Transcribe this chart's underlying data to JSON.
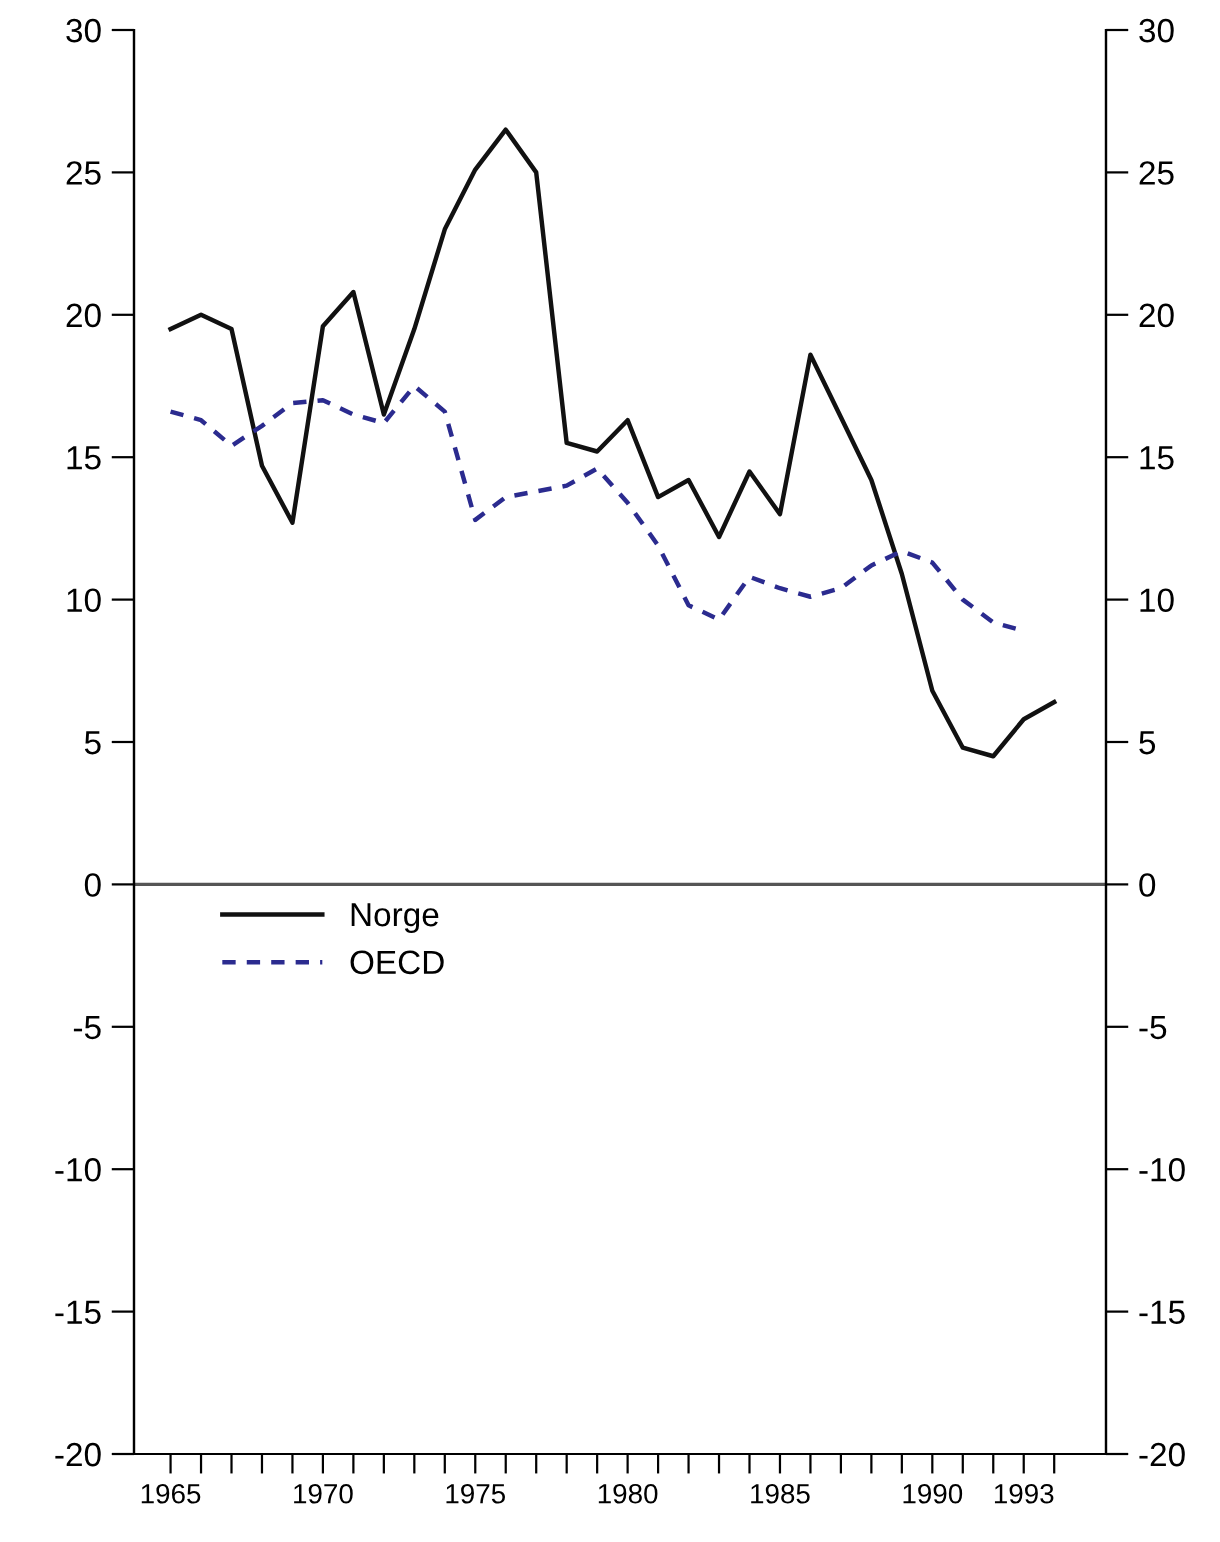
{
  "chart_data": {
    "type": "line",
    "x": [
      1965,
      1966,
      1967,
      1968,
      1969,
      1970,
      1971,
      1972,
      1973,
      1974,
      1975,
      1976,
      1977,
      1978,
      1979,
      1980,
      1981,
      1982,
      1983,
      1984,
      1985,
      1986,
      1987,
      1988,
      1989,
      1990,
      1991,
      1992,
      1993,
      1994
    ],
    "series": [
      {
        "name": "Norge",
        "color": "#111111",
        "line_style": "solid",
        "values": [
          19.5,
          20.0,
          19.5,
          14.7,
          12.7,
          19.6,
          20.8,
          16.5,
          19.5,
          23.0,
          25.1,
          26.5,
          25.0,
          15.5,
          15.2,
          16.3,
          13.6,
          14.2,
          12.2,
          14.5,
          13.0,
          18.6,
          16.4,
          14.2,
          10.9,
          6.8,
          4.8,
          4.5,
          5.8,
          6.4
        ]
      },
      {
        "name": "OECD",
        "color": "#2b2b8f",
        "line_style": "dashed",
        "values": [
          16.6,
          16.3,
          15.4,
          16.1,
          16.9,
          17.0,
          16.5,
          16.2,
          17.5,
          16.6,
          12.8,
          13.6,
          13.8,
          14.0,
          14.6,
          13.4,
          11.9,
          9.8,
          9.3,
          10.8,
          10.4,
          10.1,
          10.4,
          11.2,
          11.7,
          11.3,
          10.0,
          9.2,
          8.9,
          null
        ]
      }
    ],
    "xlim": [
      1963.8,
      1995.7
    ],
    "xticks": [
      1965,
      {
        "value": 1966,
        "label": null
      },
      {
        "value": 1967,
        "label": null
      },
      {
        "value": 1968,
        "label": null
      },
      {
        "value": 1969,
        "label": null
      },
      1970,
      {
        "value": 1971,
        "label": null
      },
      {
        "value": 1972,
        "label": null
      },
      {
        "value": 1973,
        "label": null
      },
      {
        "value": 1974,
        "label": null
      },
      1975,
      {
        "value": 1976,
        "label": null
      },
      {
        "value": 1977,
        "label": null
      },
      {
        "value": 1978,
        "label": null
      },
      {
        "value": 1979,
        "label": null
      },
      1980,
      {
        "value": 1981,
        "label": null
      },
      {
        "value": 1982,
        "label": null
      },
      {
        "value": 1983,
        "label": null
      },
      {
        "value": 1984,
        "label": null
      },
      1985,
      {
        "value": 1986,
        "label": null
      },
      {
        "value": 1987,
        "label": null
      },
      {
        "value": 1988,
        "label": null
      },
      {
        "value": 1989,
        "label": null
      },
      1990,
      {
        "value": 1991,
        "label": null
      },
      {
        "value": 1992,
        "label": null
      },
      1993,
      {
        "value": 1994,
        "label": null
      }
    ],
    "ylim": [
      -20,
      30
    ],
    "yticks": [
      -20,
      -15,
      -10,
      -5,
      0,
      5,
      10,
      15,
      20,
      25,
      30
    ],
    "y2lim": [
      -20,
      30
    ],
    "y2ticks": [
      -20,
      -15,
      -10,
      -5,
      0,
      5,
      10,
      15,
      20,
      25,
      30
    ],
    "ref_lines": [
      {
        "axis": "y",
        "value": 0,
        "color": "#555555"
      }
    ],
    "grid": false,
    "legend": "left",
    "marker": "none"
  }
}
